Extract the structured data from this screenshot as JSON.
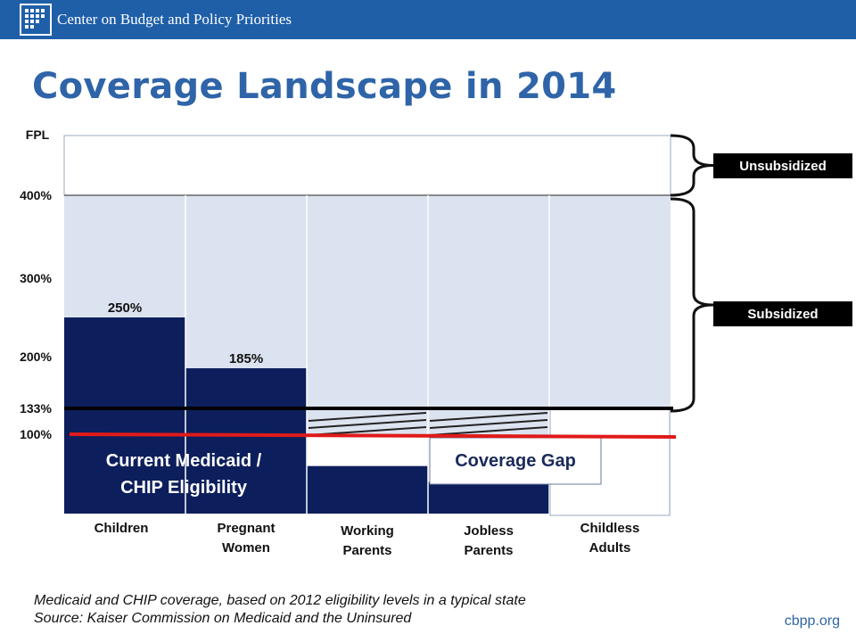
{
  "header": {
    "org_name": "Center on Budget and Policy Priorities",
    "logo_icon": "cbpp-logo-icon",
    "bar_color": "#1f5fa8"
  },
  "title": "Coverage Landscape in 2014",
  "chart_data": {
    "type": "bar",
    "ylabel": "FPL",
    "categories": [
      "Children",
      "Pregnant\nWomen",
      "Working\nParents",
      "Jobless\nParents",
      "Childless\nAdults"
    ],
    "y_ticks": [
      "400%",
      "300%",
      "200%",
      "133%",
      "100%"
    ],
    "medicaid_eligibility_pct": [
      250,
      185,
      60,
      40,
      0
    ],
    "bar_value_labels": [
      "250%",
      "185%",
      "",
      "",
      ""
    ],
    "subsidy_range_pct": [
      133,
      400
    ],
    "lines": {
      "threshold_133": {
        "value": 133,
        "color": "#000000"
      },
      "threshold_100": {
        "value": 100,
        "color": "#e01a1a"
      }
    },
    "annotations": {
      "medicaid_label_line1": "Current Medicaid /",
      "medicaid_label_line2": "CHIP Eligibility",
      "gap_label": "Coverage Gap"
    },
    "brackets": {
      "unsubsidized": "Unsubsidized",
      "subsidized": "Subsidized"
    },
    "colors": {
      "medicaid": "#0c1f5c",
      "subsidized": "#dce3f0",
      "bracket_label_bg": "#000000",
      "title": "#2f64a8"
    }
  },
  "caption": {
    "line1": "Medicaid and CHIP coverage, based on 2012 eligibility levels in a typical state",
    "line2": "Source: Kaiser Commission on Medicaid and the Uninsured"
  },
  "site": "cbpp.org"
}
